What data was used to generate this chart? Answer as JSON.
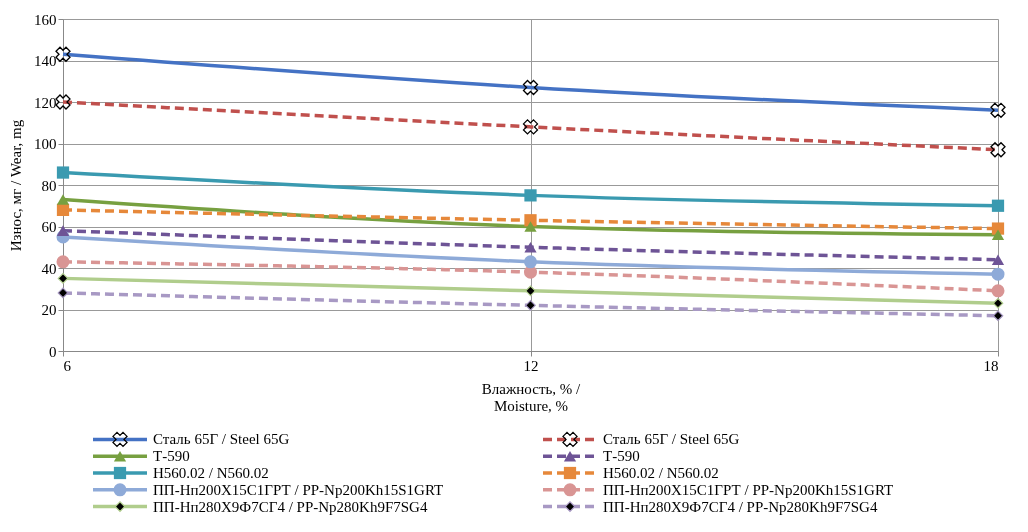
{
  "chart_data": {
    "type": "line",
    "xlabel": "Влажность, % / Moisture, %",
    "ylabel": "Износ, мг / Wear, mg",
    "x": [
      6,
      12,
      18
    ],
    "xlim": [
      6,
      18
    ],
    "xticks": [
      6,
      12,
      18
    ],
    "ylim": [
      0,
      160
    ],
    "yticks": [
      0,
      20,
      40,
      60,
      80,
      100,
      120,
      140,
      160
    ],
    "grid": true,
    "legend": "bottom",
    "series": [
      {
        "name": "Сталь 65Г / Steel 65G",
        "color": "#4472c4",
        "values": [
          143,
          127,
          116
        ],
        "marker": "cross",
        "line_style": "solid"
      },
      {
        "name": "Сталь 65Г / Steel 65G",
        "color": "#c0504d",
        "values": [
          120,
          108,
          97
        ],
        "marker": "cross",
        "line_style": "dashed"
      },
      {
        "name": "Т-590",
        "color": "#77a040",
        "values": [
          73,
          60,
          56
        ],
        "marker": "triangle",
        "line_style": "solid"
      },
      {
        "name": "Т-590",
        "color": "#6e5496",
        "values": [
          58,
          50,
          44
        ],
        "marker": "triangle",
        "line_style": "dashed"
      },
      {
        "name": "Н560.02 / N560.02",
        "color": "#3a9ab0",
        "values": [
          86,
          75,
          70
        ],
        "marker": "square",
        "line_style": "solid"
      },
      {
        "name": "Н560.02 / N560.02",
        "color": "#e6883a",
        "values": [
          68,
          63,
          59
        ],
        "marker": "square",
        "line_style": "dashed"
      },
      {
        "name": "ПП-Нп200Х15С1ГРТ / PP-Np200Kh15S1GRT",
        "color": "#8eaad8",
        "values": [
          55,
          43,
          37
        ],
        "marker": "circle",
        "line_style": "solid"
      },
      {
        "name": "ПП-Нп200Х15С1ГРТ / PP-Np200Kh15S1GRT",
        "color": "#d99594",
        "values": [
          43,
          38,
          29
        ],
        "marker": "circle",
        "line_style": "dashed"
      },
      {
        "name": "ПП-Нп280Х9Ф7СГ4 / PP-Np280Kh9F7SG4",
        "color": "#b0cd8c",
        "values": [
          35,
          29,
          23
        ],
        "marker": "diamond",
        "line_style": "solid"
      },
      {
        "name": "ПП-Нп280Х9Ф7СГ4 / PP-Np280Kh9F7SG4",
        "color": "#a899c4",
        "values": [
          28,
          22,
          17
        ],
        "marker": "diamond",
        "line_style": "dashed"
      }
    ]
  }
}
